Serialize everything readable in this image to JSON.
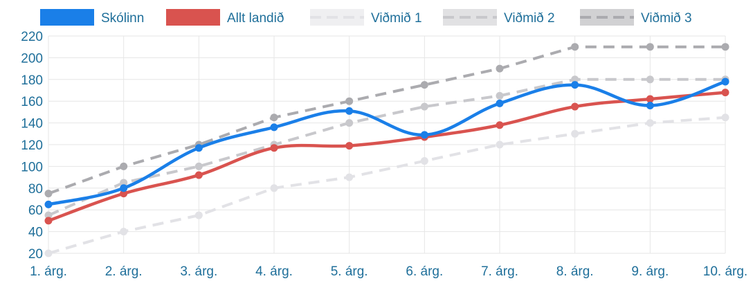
{
  "chart_data": {
    "type": "line",
    "categories": [
      "1. árg.",
      "2. árg.",
      "3. árg.",
      "4. árg.",
      "5. árg.",
      "6. árg.",
      "7. árg.",
      "8. árg.",
      "9. árg.",
      "10. árg."
    ],
    "ylim": [
      20,
      220
    ],
    "yticks": [
      20,
      40,
      60,
      80,
      100,
      120,
      140,
      160,
      180,
      200,
      220
    ],
    "grid": true,
    "legend_position": "top",
    "series": [
      {
        "name": "Skólinn",
        "color": "#1a7fe8",
        "style": "solid",
        "smooth": true,
        "values": [
          65,
          80,
          117,
          136,
          151,
          129,
          158,
          175,
          156,
          178
        ]
      },
      {
        "name": "Allt landið",
        "color": "#d9534f",
        "style": "solid",
        "smooth": true,
        "values": [
          50,
          75,
          92,
          117,
          119,
          127,
          138,
          155,
          162,
          168
        ]
      },
      {
        "name": "Viðmið 1",
        "color": "#e2e2e6",
        "style": "dashed",
        "smooth": false,
        "values": [
          20,
          40,
          55,
          80,
          90,
          105,
          120,
          130,
          140,
          145
        ]
      },
      {
        "name": "Viðmið 2",
        "color": "#c8c8cc",
        "style": "dashed",
        "smooth": false,
        "values": [
          55,
          85,
          100,
          120,
          140,
          155,
          165,
          180,
          180,
          180
        ]
      },
      {
        "name": "Viðmið 3",
        "color": "#ababaf",
        "style": "dashed",
        "smooth": false,
        "values": [
          75,
          100,
          120,
          145,
          160,
          175,
          190,
          210,
          210,
          210
        ]
      }
    ]
  }
}
